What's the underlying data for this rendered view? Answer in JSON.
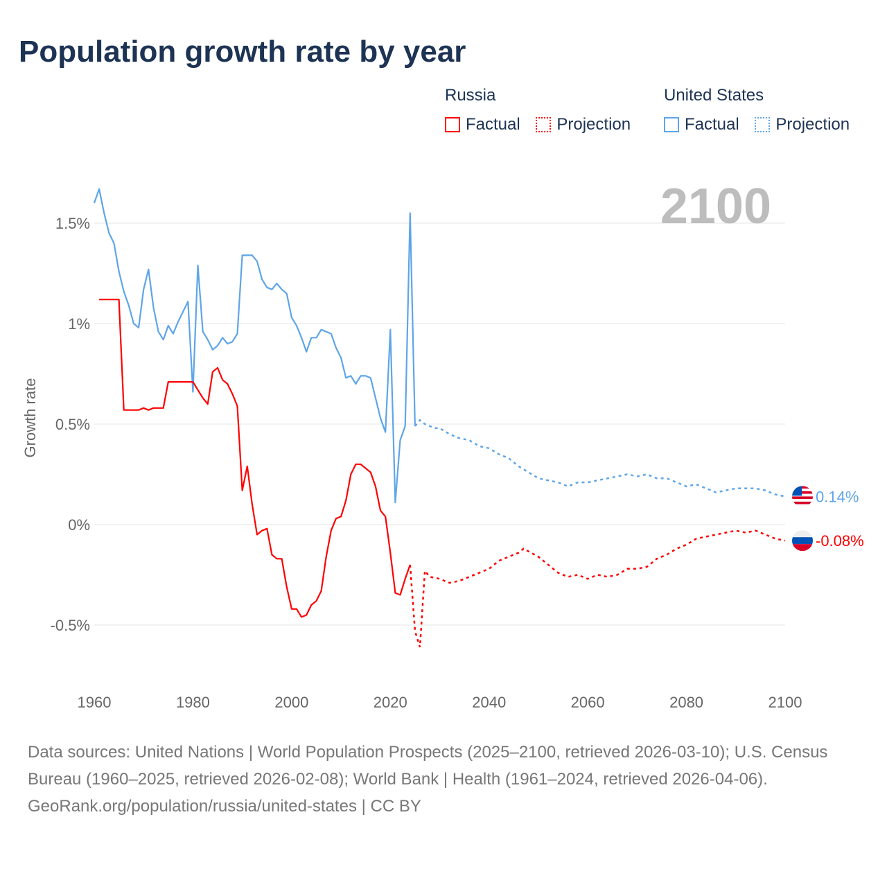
{
  "title": "Population growth rate by year",
  "legend": {
    "groups": [
      {
        "name": "Russia",
        "factual_label": "Factual",
        "projection_label": "Projection",
        "color": "#ff0000"
      },
      {
        "name": "United States",
        "factual_label": "Factual",
        "projection_label": "Projection",
        "color": "#5ea5e8"
      }
    ]
  },
  "footer": {
    "sources": "Data sources: United Nations | World Population Prospects (2025–2100, retrieved 2026-03-10); U.S. Census Bureau (1960–2025, retrieved 2026-02-08); World Bank | Health (1961–2024, retrieved 2026-04-06).",
    "credit": "GeoRank.org/population/russia/united-states | CC BY"
  },
  "chart_data": {
    "type": "line",
    "year_label": "2100",
    "ylabel": "Growth rate",
    "xlim": [
      1960,
      2100
    ],
    "ylim": [
      -0.75,
      1.75
    ],
    "x_ticks": [
      1960,
      1980,
      2000,
      2020,
      2040,
      2060,
      2080,
      2100
    ],
    "y_ticks": [
      {
        "v": 1.5,
        "label": "1.5%"
      },
      {
        "v": 1,
        "label": "1%"
      },
      {
        "v": 0.5,
        "label": "0.5%"
      },
      {
        "v": 0,
        "label": "0%"
      },
      {
        "v": -0.5,
        "label": "-0.5%"
      }
    ],
    "grid": true,
    "series": [
      {
        "name": "United States",
        "color": "#5ea5e8",
        "end_label": "0.14%",
        "factual": [
          [
            1960,
            1.6
          ],
          [
            1961,
            1.67
          ],
          [
            1962,
            1.55
          ],
          [
            1963,
            1.45
          ],
          [
            1964,
            1.4
          ],
          [
            1965,
            1.26
          ],
          [
            1966,
            1.16
          ],
          [
            1967,
            1.09
          ],
          [
            1968,
            1.0
          ],
          [
            1969,
            0.98
          ],
          [
            1970,
            1.17
          ],
          [
            1971,
            1.27
          ],
          [
            1972,
            1.08
          ],
          [
            1973,
            0.96
          ],
          [
            1974,
            0.92
          ],
          [
            1975,
            0.99
          ],
          [
            1976,
            0.95
          ],
          [
            1977,
            1.01
          ],
          [
            1978,
            1.06
          ],
          [
            1979,
            1.11
          ],
          [
            1980,
            0.66
          ],
          [
            1981,
            1.29
          ],
          [
            1982,
            0.96
          ],
          [
            1983,
            0.92
          ],
          [
            1984,
            0.87
          ],
          [
            1985,
            0.89
          ],
          [
            1986,
            0.93
          ],
          [
            1987,
            0.9
          ],
          [
            1988,
            0.91
          ],
          [
            1989,
            0.95
          ],
          [
            1990,
            1.34
          ],
          [
            1991,
            1.34
          ],
          [
            1992,
            1.34
          ],
          [
            1993,
            1.31
          ],
          [
            1994,
            1.22
          ],
          [
            1995,
            1.18
          ],
          [
            1996,
            1.17
          ],
          [
            1997,
            1.2
          ],
          [
            1998,
            1.17
          ],
          [
            1999,
            1.15
          ],
          [
            2000,
            1.03
          ],
          [
            2001,
            0.99
          ],
          [
            2002,
            0.93
          ],
          [
            2003,
            0.86
          ],
          [
            2004,
            0.93
          ],
          [
            2005,
            0.93
          ],
          [
            2006,
            0.97
          ],
          [
            2007,
            0.96
          ],
          [
            2008,
            0.95
          ],
          [
            2009,
            0.88
          ],
          [
            2010,
            0.83
          ],
          [
            2011,
            0.73
          ],
          [
            2012,
            0.74
          ],
          [
            2013,
            0.7
          ],
          [
            2014,
            0.74
          ],
          [
            2015,
            0.74
          ],
          [
            2016,
            0.73
          ],
          [
            2017,
            0.63
          ],
          [
            2018,
            0.53
          ],
          [
            2019,
            0.46
          ],
          [
            2020,
            0.97
          ],
          [
            2021,
            0.11
          ],
          [
            2022,
            0.42
          ],
          [
            2023,
            0.49
          ],
          [
            2024,
            1.55
          ],
          [
            2025,
            0.49
          ]
        ],
        "projection": [
          [
            2025,
            0.49
          ],
          [
            2026,
            0.52
          ],
          [
            2027,
            0.5
          ],
          [
            2028,
            0.49
          ],
          [
            2029,
            0.48
          ],
          [
            2030,
            0.48
          ],
          [
            2032,
            0.45
          ],
          [
            2034,
            0.43
          ],
          [
            2036,
            0.42
          ],
          [
            2038,
            0.39
          ],
          [
            2040,
            0.38
          ],
          [
            2042,
            0.35
          ],
          [
            2044,
            0.33
          ],
          [
            2046,
            0.29
          ],
          [
            2048,
            0.26
          ],
          [
            2050,
            0.23
          ],
          [
            2052,
            0.22
          ],
          [
            2054,
            0.21
          ],
          [
            2056,
            0.19
          ],
          [
            2058,
            0.21
          ],
          [
            2060,
            0.21
          ],
          [
            2062,
            0.22
          ],
          [
            2064,
            0.23
          ],
          [
            2066,
            0.24
          ],
          [
            2068,
            0.25
          ],
          [
            2070,
            0.24
          ],
          [
            2072,
            0.25
          ],
          [
            2074,
            0.23
          ],
          [
            2076,
            0.23
          ],
          [
            2078,
            0.21
          ],
          [
            2080,
            0.19
          ],
          [
            2082,
            0.2
          ],
          [
            2084,
            0.18
          ],
          [
            2086,
            0.16
          ],
          [
            2088,
            0.17
          ],
          [
            2090,
            0.18
          ],
          [
            2092,
            0.18
          ],
          [
            2094,
            0.18
          ],
          [
            2096,
            0.17
          ],
          [
            2098,
            0.15
          ],
          [
            2100,
            0.14
          ]
        ]
      },
      {
        "name": "Russia",
        "color": "#ff0000",
        "end_label": "-0.08%",
        "factual": [
          [
            1961,
            1.12
          ],
          [
            1962,
            1.12
          ],
          [
            1963,
            1.12
          ],
          [
            1964,
            1.12
          ],
          [
            1965,
            1.12
          ],
          [
            1966,
            0.57
          ],
          [
            1967,
            0.57
          ],
          [
            1968,
            0.57
          ],
          [
            1969,
            0.57
          ],
          [
            1970,
            0.58
          ],
          [
            1971,
            0.57
          ],
          [
            1972,
            0.58
          ],
          [
            1973,
            0.58
          ],
          [
            1974,
            0.58
          ],
          [
            1975,
            0.71
          ],
          [
            1976,
            0.71
          ],
          [
            1977,
            0.71
          ],
          [
            1978,
            0.71
          ],
          [
            1979,
            0.71
          ],
          [
            1980,
            0.71
          ],
          [
            1981,
            0.67
          ],
          [
            1982,
            0.63
          ],
          [
            1983,
            0.6
          ],
          [
            1984,
            0.76
          ],
          [
            1985,
            0.78
          ],
          [
            1986,
            0.72
          ],
          [
            1987,
            0.7
          ],
          [
            1988,
            0.65
          ],
          [
            1989,
            0.59
          ],
          [
            1990,
            0.17
          ],
          [
            1991,
            0.29
          ],
          [
            1992,
            0.1
          ],
          [
            1993,
            -0.05
          ],
          [
            1994,
            -0.03
          ],
          [
            1995,
            -0.02
          ],
          [
            1996,
            -0.15
          ],
          [
            1997,
            -0.17
          ],
          [
            1998,
            -0.17
          ],
          [
            1999,
            -0.31
          ],
          [
            2000,
            -0.42
          ],
          [
            2001,
            -0.42
          ],
          [
            2002,
            -0.46
          ],
          [
            2003,
            -0.45
          ],
          [
            2004,
            -0.4
          ],
          [
            2005,
            -0.38
          ],
          [
            2006,
            -0.33
          ],
          [
            2007,
            -0.16
          ],
          [
            2008,
            -0.03
          ],
          [
            2009,
            0.03
          ],
          [
            2010,
            0.04
          ],
          [
            2011,
            0.12
          ],
          [
            2012,
            0.25
          ],
          [
            2013,
            0.3
          ],
          [
            2014,
            0.3
          ],
          [
            2015,
            0.28
          ],
          [
            2016,
            0.26
          ],
          [
            2017,
            0.19
          ],
          [
            2018,
            0.07
          ],
          [
            2019,
            0.04
          ],
          [
            2020,
            -0.14
          ],
          [
            2021,
            -0.34
          ],
          [
            2022,
            -0.35
          ],
          [
            2023,
            -0.27
          ],
          [
            2024,
            -0.2
          ]
        ],
        "projection": [
          [
            2024,
            -0.2
          ],
          [
            2025,
            -0.53
          ],
          [
            2026,
            -0.61
          ],
          [
            2027,
            -0.23
          ],
          [
            2028,
            -0.26
          ],
          [
            2030,
            -0.27
          ],
          [
            2032,
            -0.29
          ],
          [
            2034,
            -0.28
          ],
          [
            2036,
            -0.26
          ],
          [
            2038,
            -0.24
          ],
          [
            2040,
            -0.22
          ],
          [
            2042,
            -0.18
          ],
          [
            2044,
            -0.16
          ],
          [
            2046,
            -0.14
          ],
          [
            2047,
            -0.12
          ],
          [
            2050,
            -0.16
          ],
          [
            2052,
            -0.2
          ],
          [
            2054,
            -0.24
          ],
          [
            2056,
            -0.26
          ],
          [
            2058,
            -0.25
          ],
          [
            2060,
            -0.27
          ],
          [
            2062,
            -0.25
          ],
          [
            2064,
            -0.26
          ],
          [
            2066,
            -0.25
          ],
          [
            2068,
            -0.22
          ],
          [
            2070,
            -0.22
          ],
          [
            2072,
            -0.21
          ],
          [
            2074,
            -0.17
          ],
          [
            2076,
            -0.15
          ],
          [
            2078,
            -0.12
          ],
          [
            2080,
            -0.1
          ],
          [
            2082,
            -0.07
          ],
          [
            2084,
            -0.06
          ],
          [
            2086,
            -0.05
          ],
          [
            2088,
            -0.04
          ],
          [
            2090,
            -0.03
          ],
          [
            2092,
            -0.04
          ],
          [
            2094,
            -0.03
          ],
          [
            2096,
            -0.05
          ],
          [
            2098,
            -0.07
          ],
          [
            2100,
            -0.08
          ]
        ]
      }
    ]
  }
}
